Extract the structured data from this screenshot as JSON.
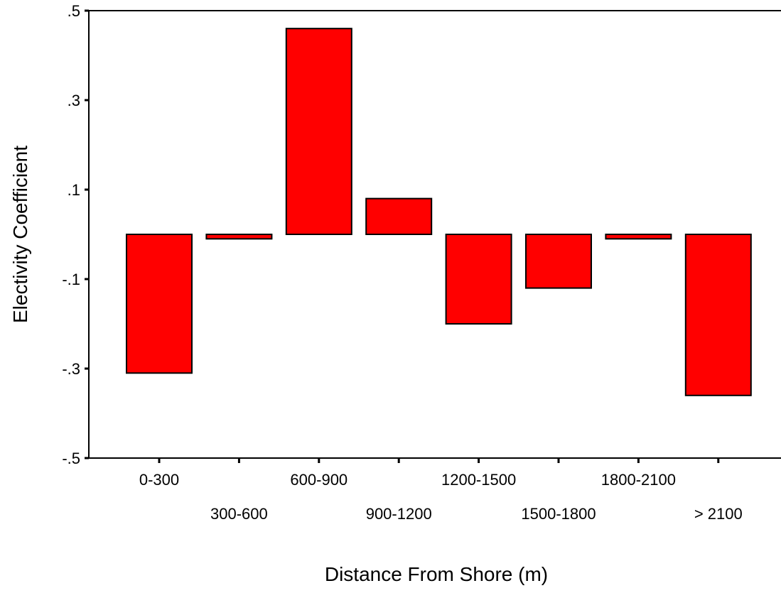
{
  "chart_data": {
    "type": "bar",
    "title": "",
    "xlabel": "Distance From Shore (m)",
    "ylabel": "Electivity Coefficient",
    "categories": [
      "0-300",
      "300-600",
      "600-900",
      "900-1200",
      "1200-1500",
      "1500-1800",
      "1800-2100",
      "> 2100"
    ],
    "values": [
      -0.31,
      -0.01,
      0.46,
      0.08,
      -0.2,
      -0.12,
      -0.01,
      -0.36
    ],
    "ylim": [
      -0.5,
      0.5
    ],
    "yticks": [
      ".5",
      ".3",
      ".1",
      "-.1",
      "-.3",
      "-.5"
    ],
    "ytick_values": [
      0.5,
      0.3,
      0.1,
      -0.1,
      -0.3,
      -0.5
    ],
    "grid": false,
    "legend": "none",
    "bar_color": "#ff0000",
    "bar_edge_color": "#000000"
  }
}
